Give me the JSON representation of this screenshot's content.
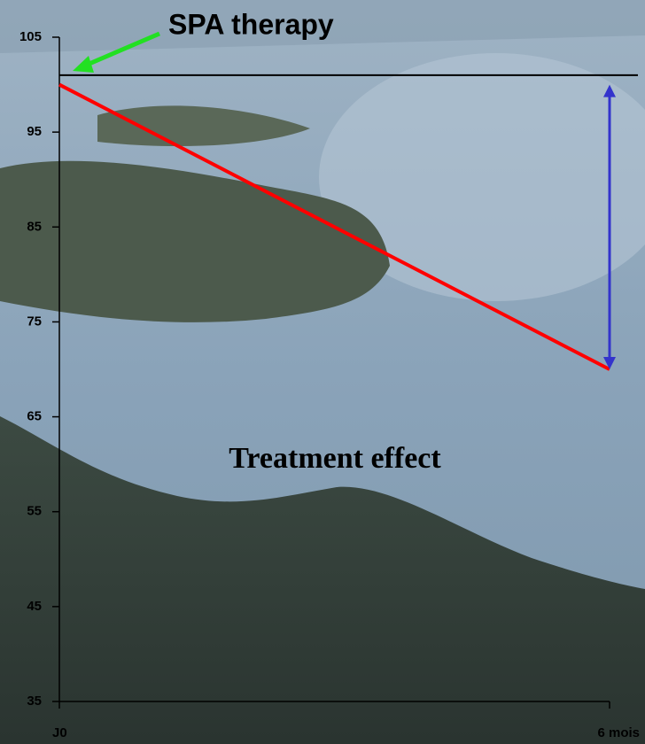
{
  "chart_data": {
    "type": "line",
    "categories": [
      "J0",
      "6 mois"
    ],
    "values": [
      100,
      70
    ],
    "color": "#ff0000",
    "ylim": [
      35,
      105
    ],
    "yticks": [
      35,
      45,
      55,
      65,
      75,
      85,
      95,
      105
    ],
    "reference_line": 101,
    "annotations": [
      "SPA therapy",
      "Treatment effect"
    ]
  }
}
